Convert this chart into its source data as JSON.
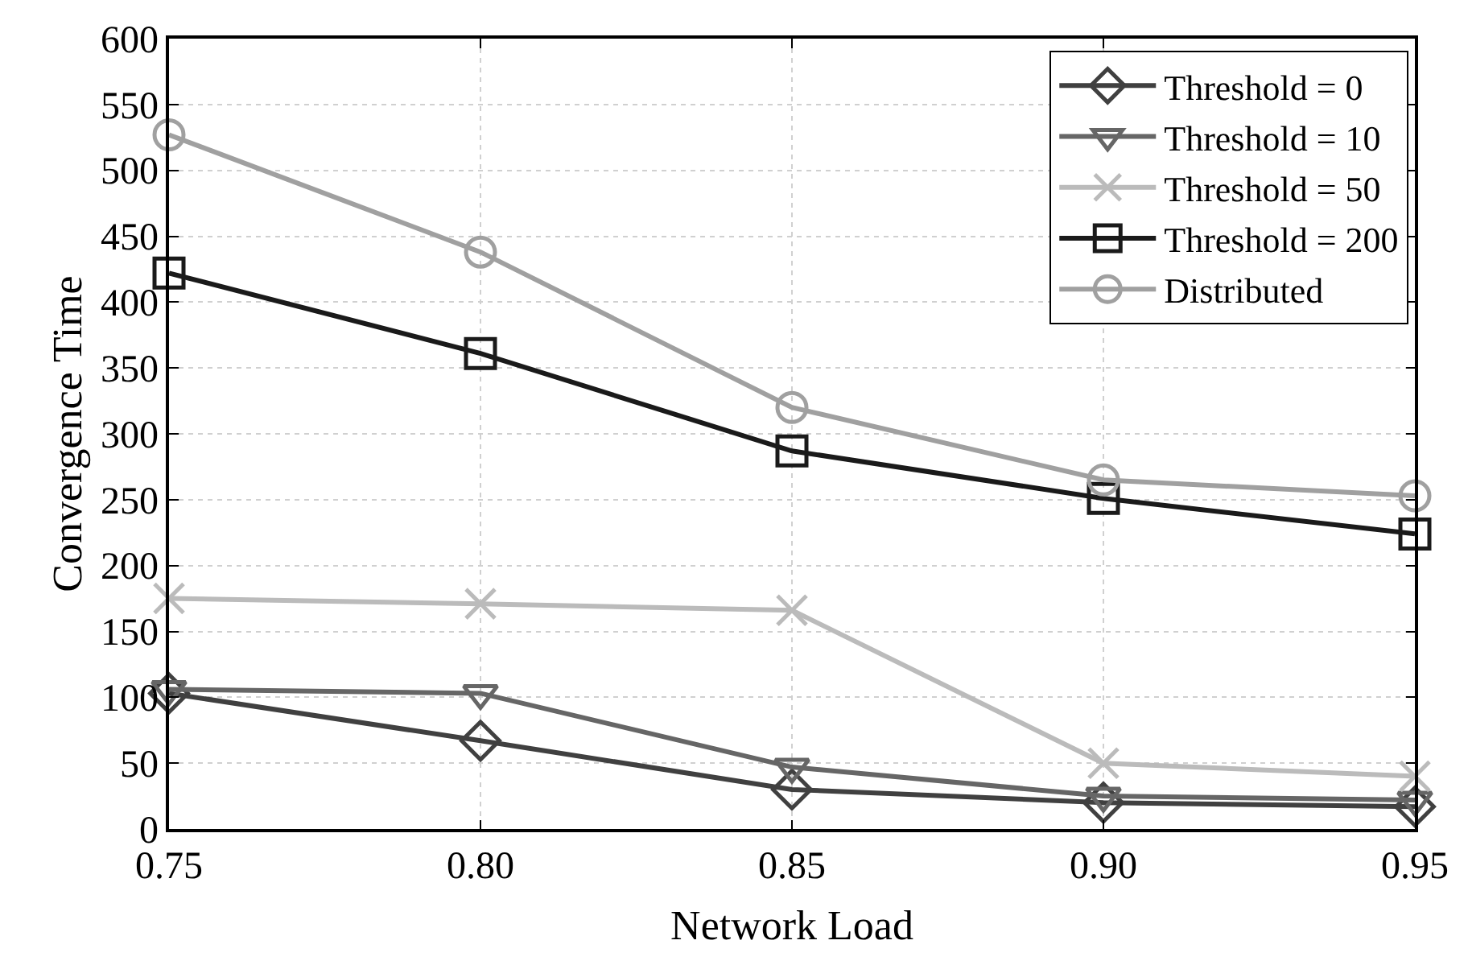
{
  "chart_data": {
    "type": "line",
    "xlabel": "Network Load",
    "ylabel": "Convergence Time",
    "x": [
      0.75,
      0.8,
      0.85,
      0.9,
      0.95
    ],
    "xlim": [
      0.75,
      0.95
    ],
    "xticks": [
      0.75,
      {
        "value": 0.8,
        "label": "0.80"
      },
      0.85,
      {
        "value": 0.9,
        "label": "0.90"
      },
      0.95
    ],
    "ylim": [
      0,
      600
    ],
    "yticks": [
      0,
      50,
      100,
      150,
      200,
      250,
      300,
      350,
      400,
      450,
      500,
      550,
      600
    ],
    "grid": true,
    "legend": "top right",
    "line_style": "solid",
    "series": [
      {
        "name": "Threshold = 0",
        "color": "#404040",
        "marker": "diamond",
        "values": [
          103,
          67,
          30,
          20,
          17
        ]
      },
      {
        "name": "Threshold = 10",
        "color": "#666666",
        "marker": "triangle",
        "values": [
          106,
          103,
          47,
          25,
          22
        ]
      },
      {
        "name": "Threshold = 50",
        "color": "#bbbbbb",
        "marker": "cross",
        "values": [
          175,
          171,
          166,
          50,
          40
        ]
      },
      {
        "name": "Threshold = 200",
        "color": "#1a1a1a",
        "marker": "square",
        "values": [
          422,
          361,
          287,
          251,
          224
        ]
      },
      {
        "name": "Distributed",
        "color": "#a0a0a0",
        "marker": "circle",
        "values": [
          527,
          438,
          320,
          265,
          253
        ]
      }
    ]
  }
}
